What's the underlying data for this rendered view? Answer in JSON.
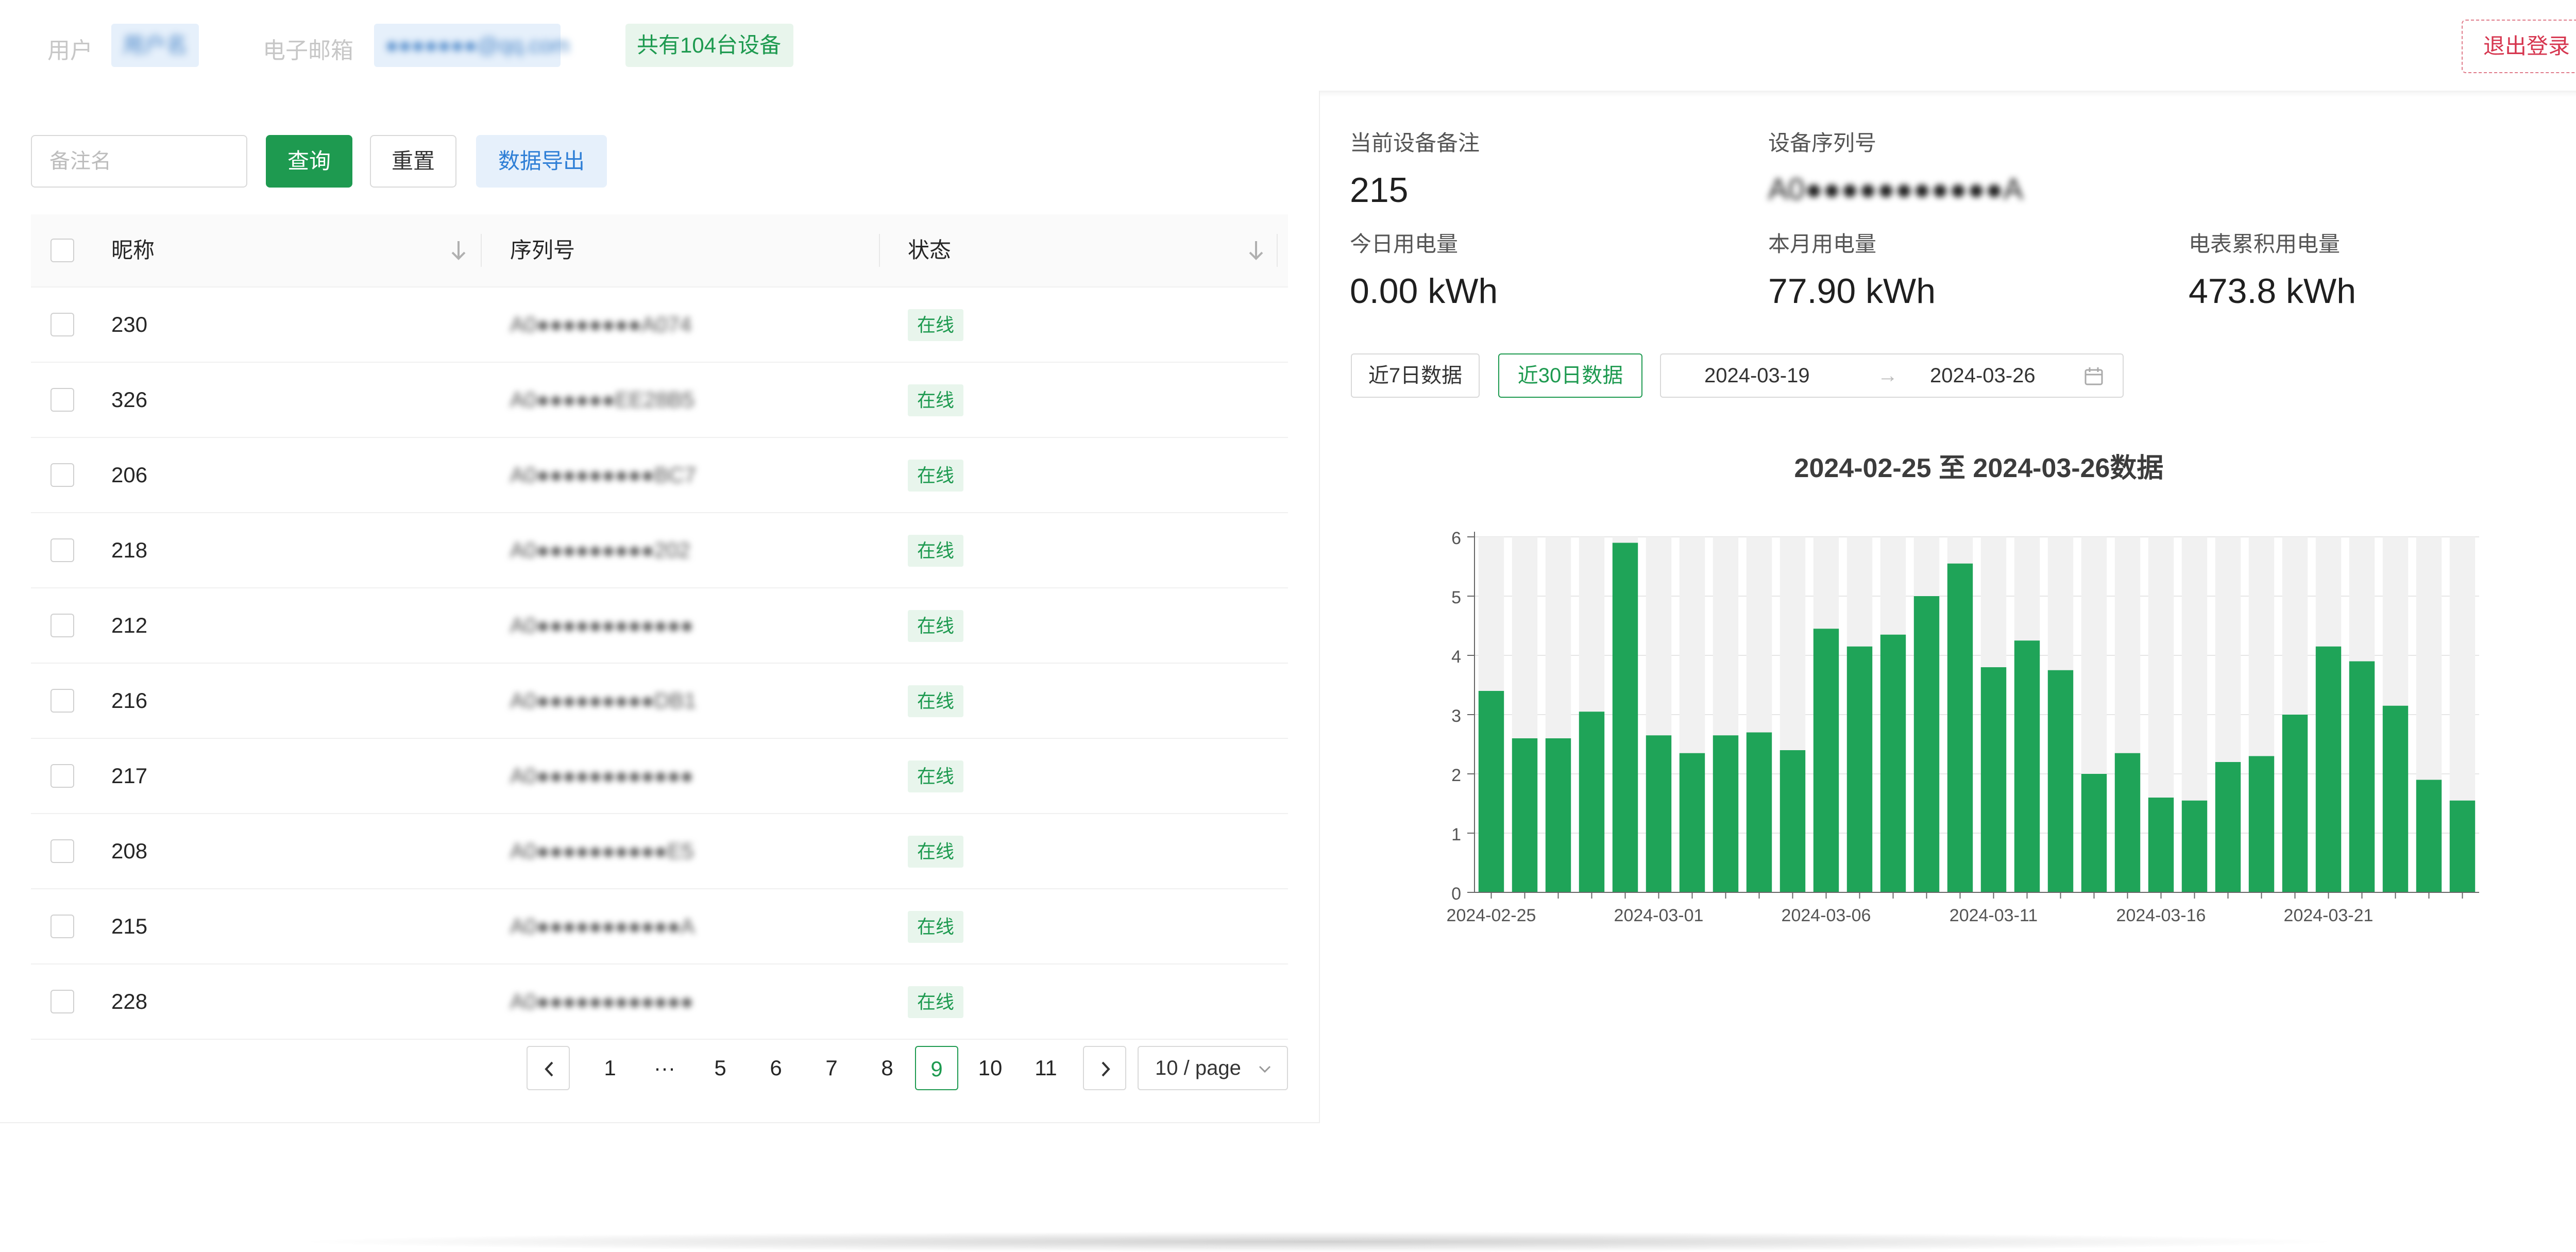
{
  "header": {
    "user_label": "用户",
    "user_value": "用户名",
    "email_label": "电子邮箱",
    "email_value": "●●●●●●●@qq.com",
    "device_count": "共有104台设备",
    "logout_label": "退出登录"
  },
  "toolbar": {
    "search_placeholder": "备注名",
    "query_label": "查询",
    "reset_label": "重置",
    "export_label": "数据导出"
  },
  "table": {
    "columns": [
      "昵称",
      "序列号",
      "状态"
    ],
    "rows": [
      {
        "name": "230",
        "serial": "A0●●●●●●●●A074",
        "status": "在线"
      },
      {
        "name": "326",
        "serial": "A0●●●●●●EE28B5",
        "status": "在线"
      },
      {
        "name": "206",
        "serial": "A0●●●●●●●●●BC7",
        "status": "在线"
      },
      {
        "name": "218",
        "serial": "A0●●●●●●●●●202",
        "status": "在线"
      },
      {
        "name": "212",
        "serial": "A0●●●●●●●●●●●●",
        "status": "在线"
      },
      {
        "name": "216",
        "serial": "A0●●●●●●●●●DB1",
        "status": "在线"
      },
      {
        "name": "217",
        "serial": "A0●●●●●●●●●●●●",
        "status": "在线"
      },
      {
        "name": "208",
        "serial": "A0●●●●●●●●●●E5",
        "status": "在线"
      },
      {
        "name": "215",
        "serial": "A0●●●●●●●●●●●A",
        "status": "在线"
      },
      {
        "name": "228",
        "serial": "A0●●●●●●●●●●●●",
        "status": "在线"
      }
    ]
  },
  "pagination": {
    "pages": [
      "1",
      "···",
      "5",
      "6",
      "7",
      "8",
      "9",
      "10",
      "11"
    ],
    "current": "9",
    "page_size": "10 / page"
  },
  "device": {
    "remark_label": "当前设备备注",
    "remark_value": "215",
    "serial_label": "设备序列号",
    "serial_value": "A0●●●●●●●●●●●A",
    "today_label": "今日用电量",
    "today_value": "0.00 kWh",
    "month_label": "本月用电量",
    "month_value": "77.90 kWh",
    "total_label": "电表累积用电量",
    "total_value": "473.8 kWh"
  },
  "range": {
    "btn_7": "近7日数据",
    "btn_30": "近30日数据",
    "start": "2024-03-19",
    "end": "2024-03-26",
    "arrow": "→"
  },
  "chart_data": {
    "type": "bar",
    "title": "2024-02-25 至 2024-03-26数据",
    "xlabel": "",
    "ylabel": "",
    "ylim": [
      0,
      6
    ],
    "yticks": [
      0,
      1,
      2,
      3,
      4,
      5,
      6
    ],
    "categories": [
      "2024-02-25",
      "2024-02-26",
      "2024-02-27",
      "2024-02-28",
      "2024-02-29",
      "2024-03-01",
      "2024-03-02",
      "2024-03-03",
      "2024-03-04",
      "2024-03-05",
      "2024-03-06",
      "2024-03-07",
      "2024-03-08",
      "2024-03-09",
      "2024-03-10",
      "2024-03-11",
      "2024-03-12",
      "2024-03-13",
      "2024-03-14",
      "2024-03-15",
      "2024-03-16",
      "2024-03-17",
      "2024-03-18",
      "2024-03-19",
      "2024-03-20",
      "2024-03-21",
      "2024-03-22",
      "2024-03-23",
      "2024-03-24",
      "2024-03-25"
    ],
    "xtick_labels": [
      "2024-02-25",
      "2024-03-01",
      "2024-03-06",
      "2024-03-11",
      "2024-03-16",
      "2024-03-21"
    ],
    "values": [
      3.4,
      2.6,
      2.6,
      3.05,
      5.9,
      2.65,
      2.35,
      2.65,
      2.7,
      2.4,
      4.45,
      4.15,
      4.35,
      5.0,
      5.55,
      3.8,
      4.25,
      3.75,
      2.0,
      2.35,
      1.6,
      1.55,
      2.2,
      2.3,
      3.0,
      4.15,
      3.9,
      3.15,
      1.9,
      1.55
    ],
    "bar_color": "#1fa458",
    "bg_bar_color": "#f1f1f1",
    "grid": true
  }
}
